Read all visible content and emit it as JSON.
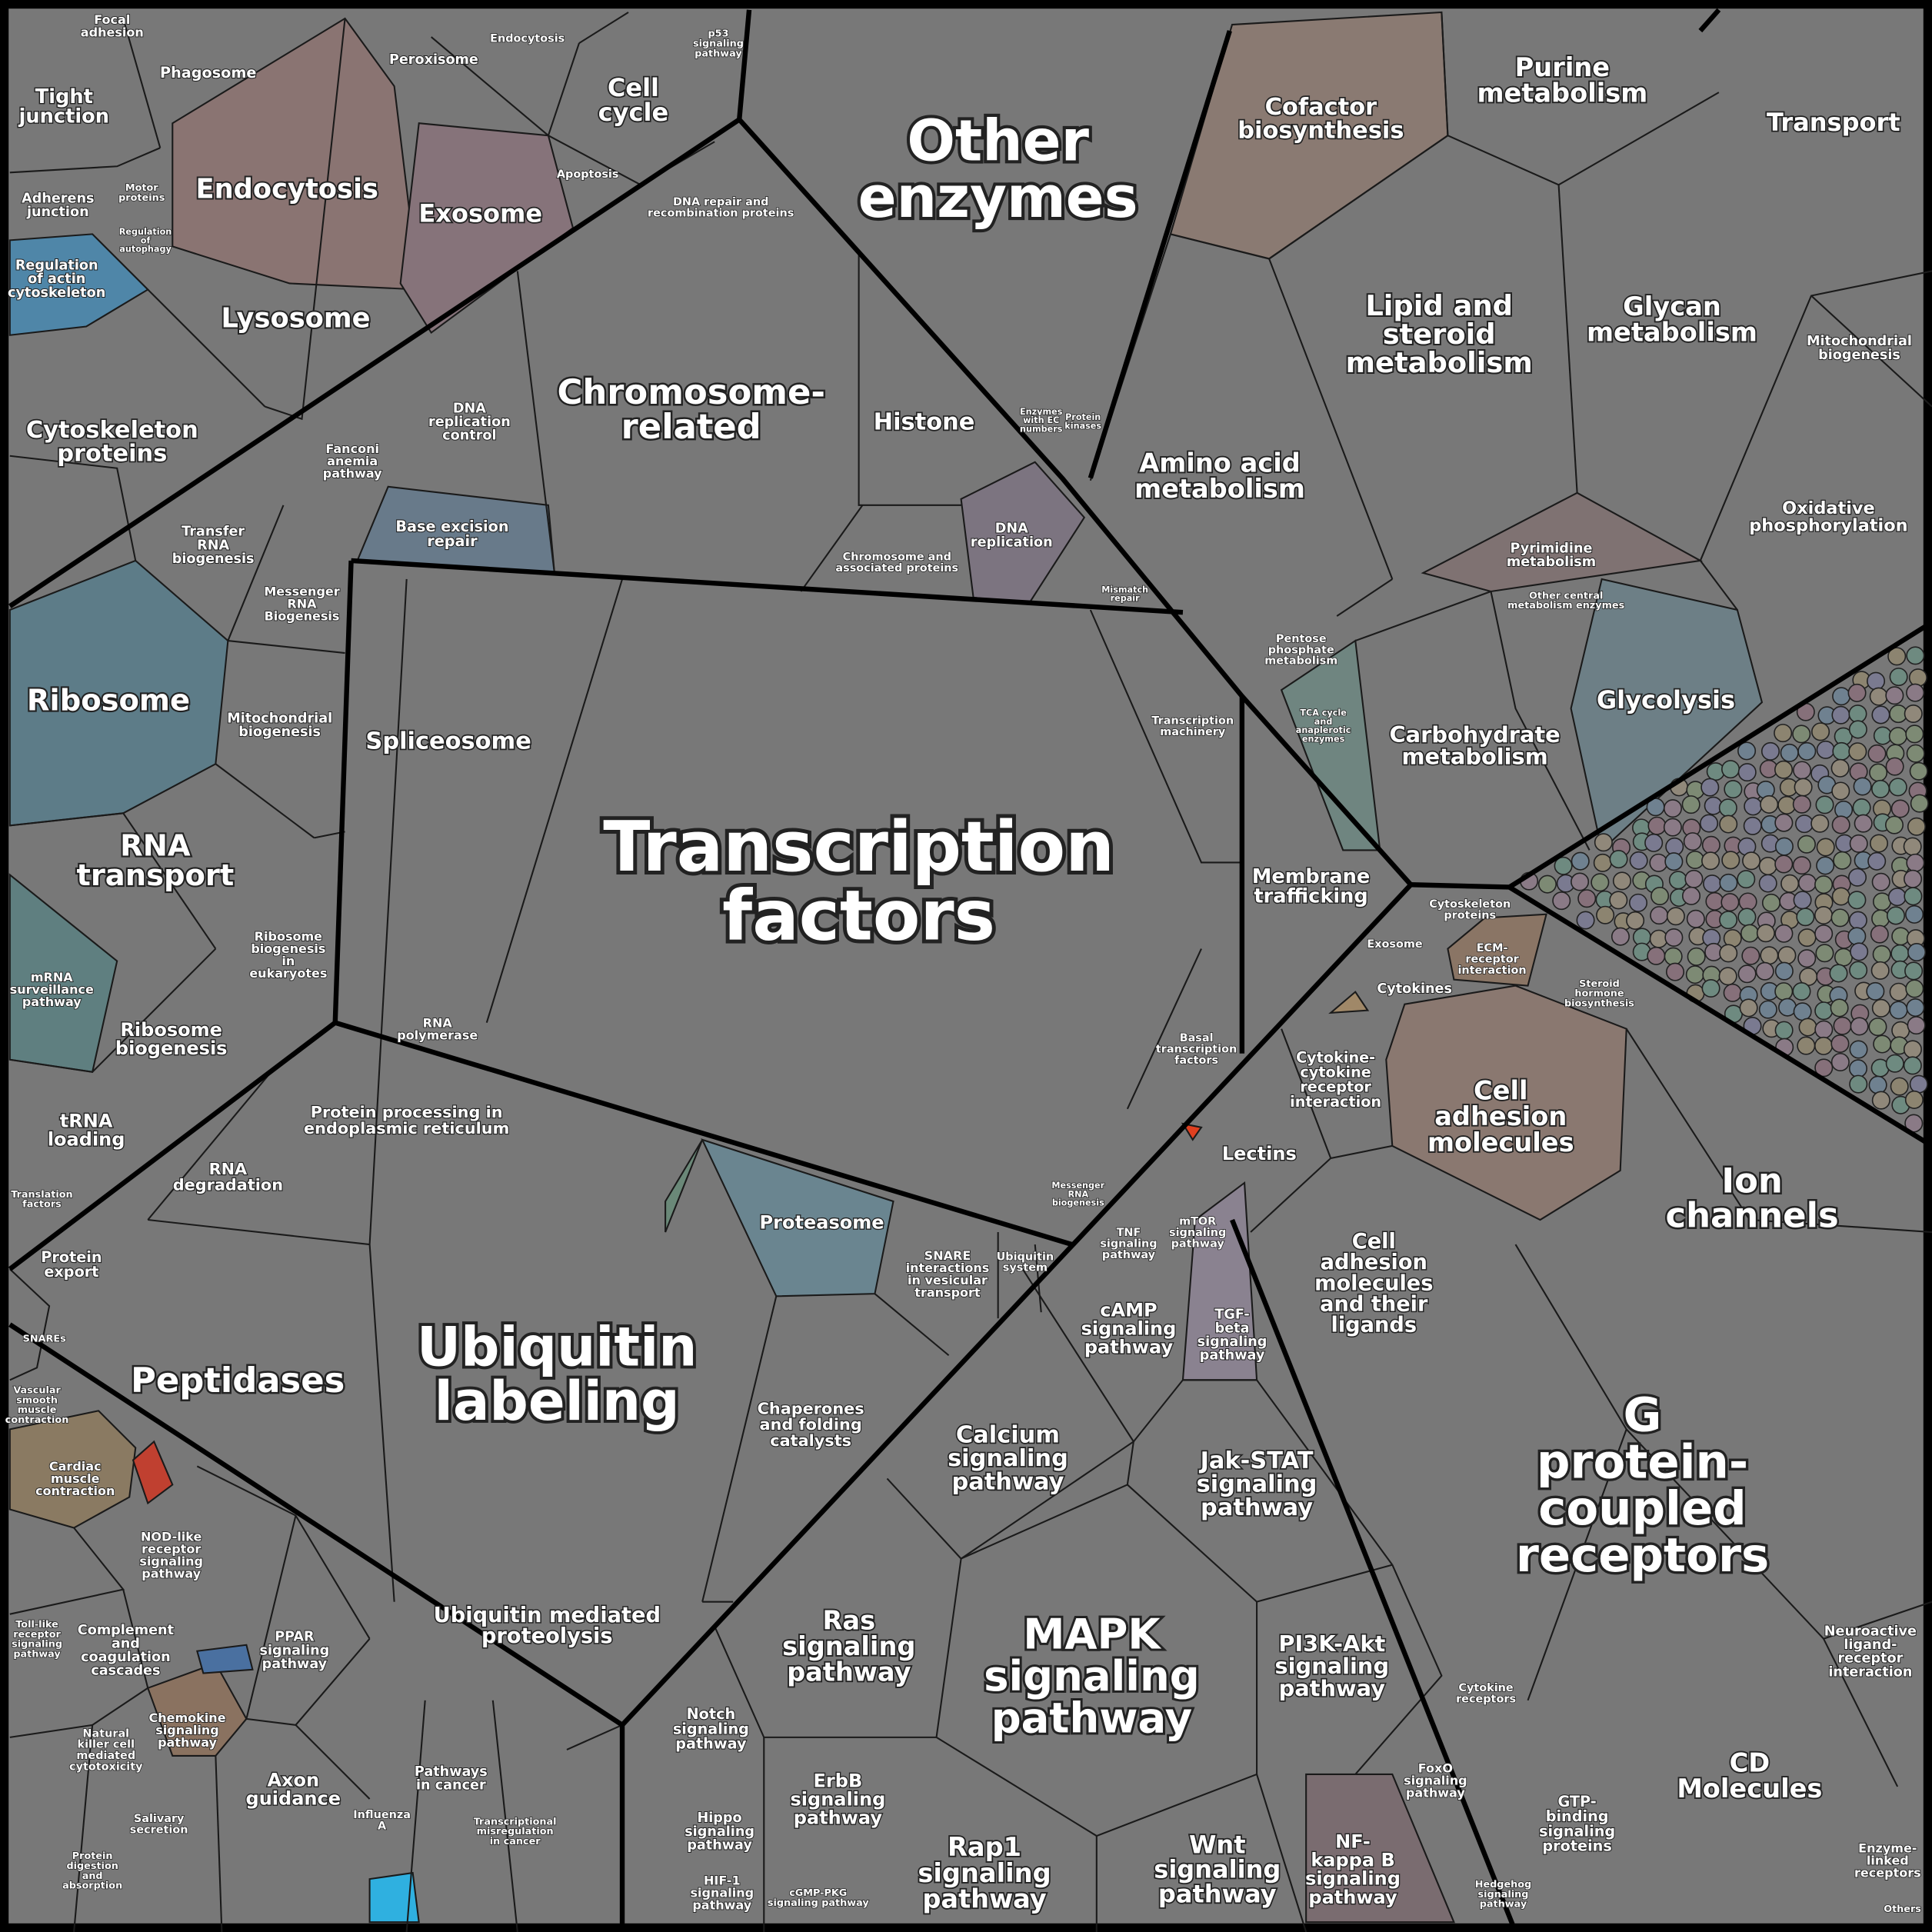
{
  "cells": [
    {
      "label": "Transcription\nfactors"
    },
    {
      "label": "Other\nenzymes"
    },
    {
      "label": "Ubiquitin\nlabeling"
    },
    {
      "label": "MAPK\nsignaling\npathway"
    },
    {
      "label": "G\nprotein-\ncoupled\nreceptors"
    },
    {
      "label": "Chromosome-\nrelated"
    },
    {
      "label": "Histone"
    },
    {
      "label": "Endocytosis"
    },
    {
      "label": "Exosome"
    },
    {
      "label": "Lysosome"
    },
    {
      "label": "Cytoskeleton\nproteins"
    },
    {
      "label": "Ribosome"
    },
    {
      "label": "RNA\ntransport"
    },
    {
      "label": "Spliceosome"
    },
    {
      "label": "Peptidases"
    },
    {
      "label": "Purine\nmetabolism"
    },
    {
      "label": "Transport"
    },
    {
      "label": "Cofactor\nbiosynthesis"
    },
    {
      "label": "Lipid and\nsteroid\nmetabolism"
    },
    {
      "label": "Glycan\nmetabolism"
    },
    {
      "label": "Amino acid\nmetabolism"
    },
    {
      "label": "Carbohydrate\nmetabolism"
    },
    {
      "label": "Glycolysis"
    },
    {
      "label": "Oxidative\nphosphorylation"
    },
    {
      "label": "Mitochondrial\nbiogenesis"
    },
    {
      "label": "Membrane\ntrafficking"
    },
    {
      "label": "Cell\nadhesion\nmolecules"
    },
    {
      "label": "Ion\nchannels"
    },
    {
      "label": "Cell\nadhesion\nmolecules\nand their\nligands"
    },
    {
      "label": "Lectins"
    },
    {
      "label": "Calcium\nsignaling\npathway"
    },
    {
      "label": "Jak-STAT\nsignaling\npathway"
    },
    {
      "label": "Ras\nsignaling\npathway"
    },
    {
      "label": "PI3K-Akt\nsignaling\npathway"
    },
    {
      "label": "CD\nMolecules"
    },
    {
      "label": "Rap1\nsignaling\npathway"
    },
    {
      "label": "Wnt\nsignaling\npathway"
    },
    {
      "label": "NF-\nkappa B\nsignaling\npathway"
    },
    {
      "label": "cAMP\nsignaling\npathway"
    },
    {
      "label": "TGF-\nbeta\nsignaling\npathway"
    },
    {
      "label": "Proteasome"
    },
    {
      "label": "Chaperones\nand folding\ncatalysts"
    },
    {
      "label": "Ubiquitin mediated\nproteolysis"
    },
    {
      "label": "Protein processing in\nendoplasmic reticulum"
    },
    {
      "label": "Cell\ncycle"
    },
    {
      "label": "Tight\njunction"
    },
    {
      "label": "Axon\nguidance"
    },
    {
      "label": "Notch\nsignaling\npathway"
    },
    {
      "label": "ErbB\nsignaling\npathway"
    },
    {
      "label": "Hippo\nsignaling\npathway"
    },
    {
      "label": "Pathways\nin cancer"
    },
    {
      "label": "Peroxisome"
    },
    {
      "label": "Phagosome"
    },
    {
      "label": "Transfer\nRNA\nbiogenesis"
    },
    {
      "label": "Mitochondrial\nbiogenesis"
    },
    {
      "label": "Messenger\nRNA\nBiogenesis"
    },
    {
      "label": "Ribosome\nbiogenesis"
    },
    {
      "label": "tRNA\nloading"
    },
    {
      "label": "RNA\ndegradation"
    },
    {
      "label": "Protein\nexport"
    },
    {
      "label": "mRNA\nsurveillance\npathway"
    },
    {
      "label": "Ribosome\nbiogenesis\nin\neukaryotes"
    },
    {
      "label": "Regulation\nof actin\ncytoskeleton"
    },
    {
      "label": "Adherens\njunction"
    },
    {
      "label": "Focal\nadhesion"
    },
    {
      "label": "Base excision\nrepair"
    },
    {
      "label": "DNA\nreplication\ncontrol"
    },
    {
      "label": "Fanconi\nanemia\npathway"
    },
    {
      "label": "Chromosome and\nassociated proteins"
    },
    {
      "label": "DNA\nreplication"
    },
    {
      "label": "DNA repair and\nrecombination proteins"
    },
    {
      "label": "Apoptosis"
    },
    {
      "label": "Transcription\nmachinery"
    },
    {
      "label": "Basal\ntranscription\nfactors"
    },
    {
      "label": "RNA\npolymerase"
    },
    {
      "label": "SNARE\ninteractions\nin vesicular\ntransport"
    },
    {
      "label": "Ubiquitin\nsystem"
    },
    {
      "label": "Messenger\nRNA\nbiogenesis"
    },
    {
      "label": "TNF\nsignaling\npathway"
    },
    {
      "label": "mTOR\nsignaling\npathway"
    },
    {
      "label": "Cytokine-\ncytokine\nreceptor\ninteraction"
    },
    {
      "label": "Cytokines"
    },
    {
      "label": "Exosome"
    },
    {
      "label": "ECM-\nreceptor\ninteraction"
    },
    {
      "label": "Cytoskeleton\nproteins"
    },
    {
      "label": "Steroid\nhormone\nbiosynthesis"
    },
    {
      "label": "Pyrimidine\nmetabolism"
    },
    {
      "label": "Pentose\nphosphate\nmetabolism"
    },
    {
      "label": "TCA cycle\nand\nanaplerotic\nenzymes"
    },
    {
      "label": "Other central\nmetabolism enzymes"
    },
    {
      "label": "Neuroactive\nligand-\nreceptor\ninteraction"
    },
    {
      "label": "Enzyme-\nlinked\nreceptors"
    },
    {
      "label": "Cytokine\nreceptors"
    },
    {
      "label": "GTP-\nbinding\nsignaling\nproteins"
    },
    {
      "label": "FoxO\nsignaling\npathway"
    },
    {
      "label": "Hedgehog\nsignaling\npathway"
    },
    {
      "label": "Complement\nand\ncoagulation\ncascades"
    },
    {
      "label": "NOD-like\nreceptor\nsignaling\npathway"
    },
    {
      "label": "PPAR\nsignaling\npathway"
    },
    {
      "label": "Chemokine\nsignaling\npathway"
    },
    {
      "label": "Natural\nkiller cell\nmediated\ncytotoxicity"
    },
    {
      "label": "Cardiac\nmuscle\ncontraction"
    },
    {
      "label": "Vascular\nsmooth\nmuscle\ncontraction"
    },
    {
      "label": "Salivary\nsecretion"
    },
    {
      "label": "Protein\ndigestion\nand\nabsorption"
    },
    {
      "label": "Influenza\nA"
    },
    {
      "label": "Others"
    },
    {
      "label": "Motor\nproteins"
    },
    {
      "label": "Endocytosis"
    },
    {
      "label": "p53\nsignaling\npathway"
    },
    {
      "label": "Translation\nfactors"
    },
    {
      "label": "SNAREs"
    },
    {
      "label": "Mismatch\nrepair"
    },
    {
      "label": "Regulation\nof\nautophagy"
    },
    {
      "label": "Toll-like\nreceptor\nsignaling\npathway"
    },
    {
      "label": "Transcriptional\nmisregulation\nin cancer"
    },
    {
      "label": "HIF-1\nsignaling\npathway"
    },
    {
      "label": "cGMP-PKG\nsignaling pathway"
    },
    {
      "label": "Protein\nkinases"
    },
    {
      "label": "Enzymes\nwith EC\nnumbers"
    }
  ]
}
